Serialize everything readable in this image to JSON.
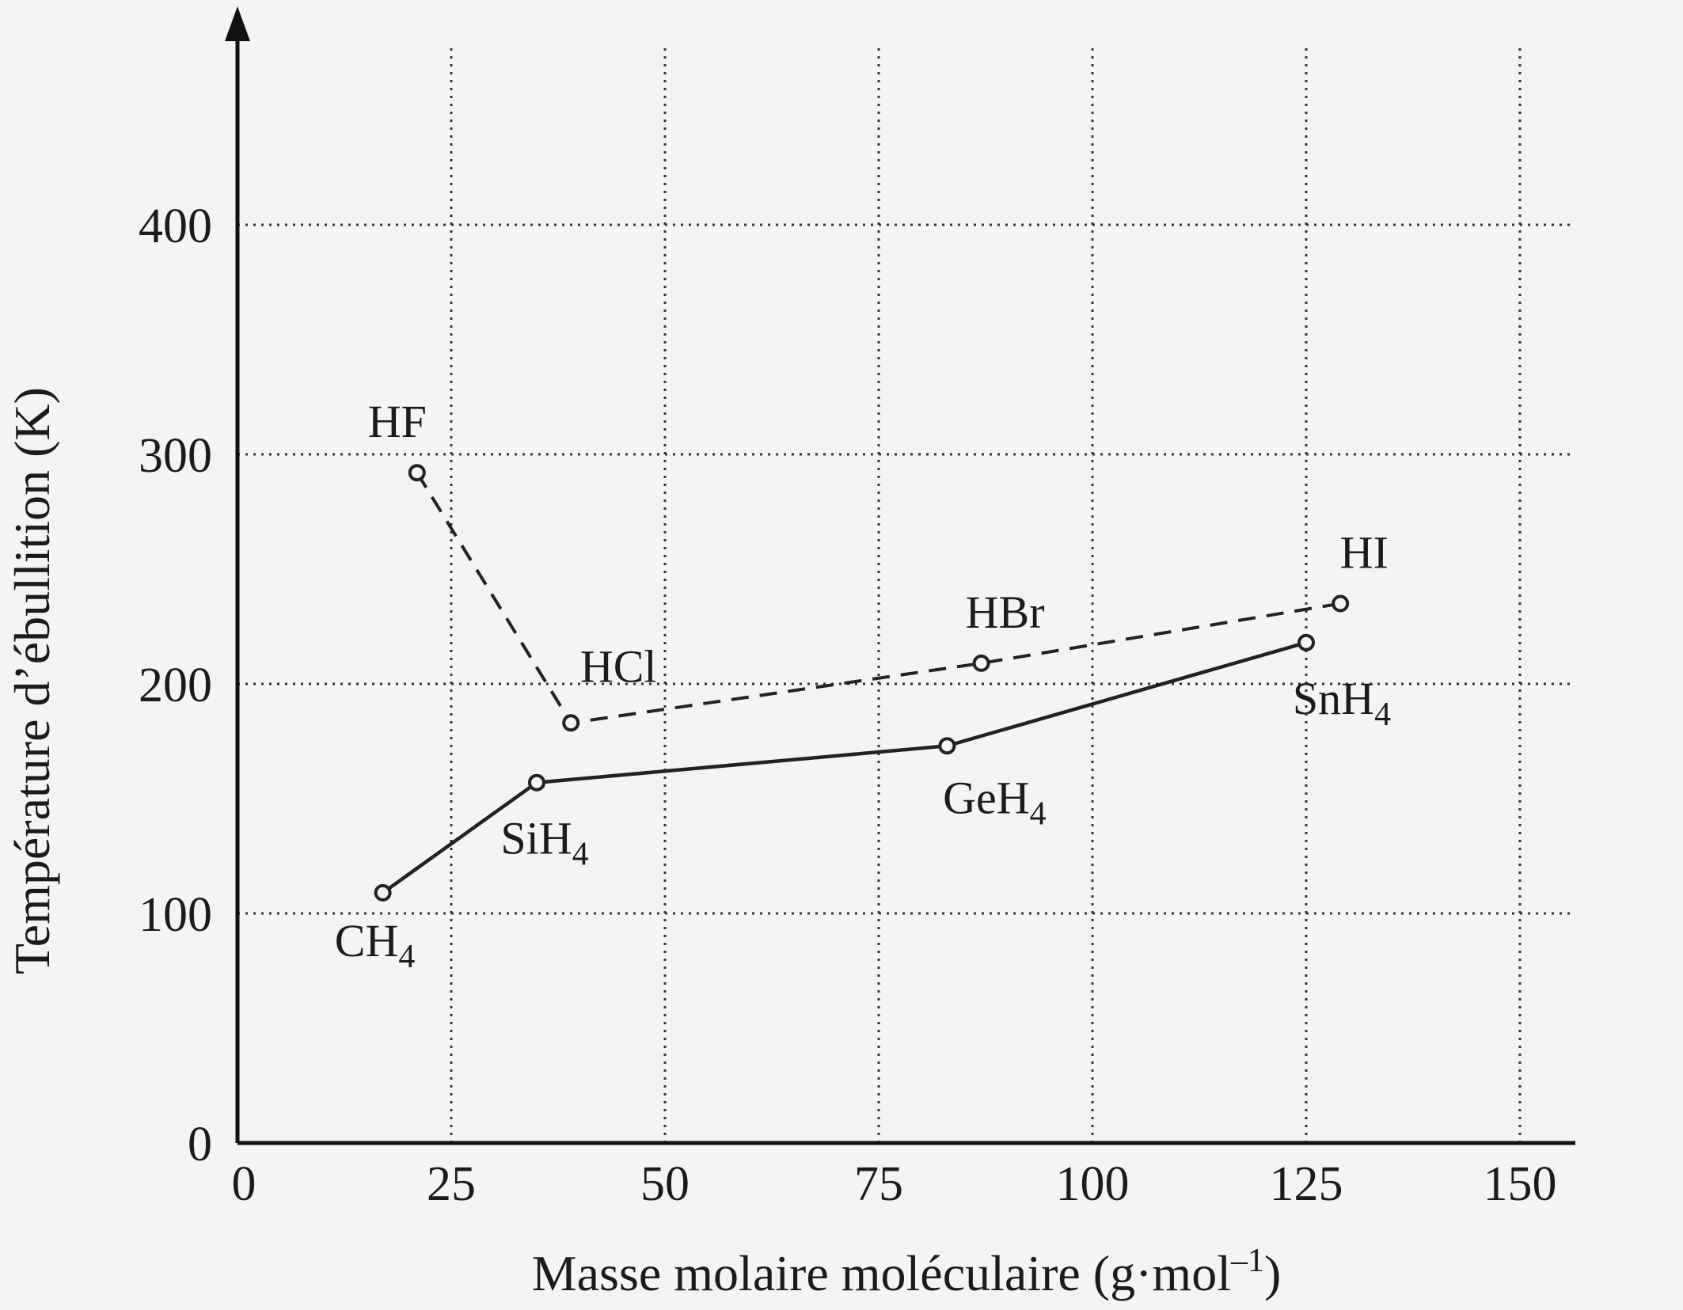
{
  "chart_data": {
    "type": "line",
    "xlabel": "Masse molaire moléculaire (g·mol",
    "xlabel_sup": "–1",
    "xlabel_end": ")",
    "ylabel": "Température d’ébullition (K)",
    "xlim": [
      0,
      160
    ],
    "ylim": [
      0,
      400
    ],
    "x_ticks": [
      0,
      25,
      50,
      75,
      100,
      125,
      150
    ],
    "y_ticks": [
      0,
      100,
      200,
      300,
      400
    ],
    "grid": true,
    "series": [
      {
        "style": "solid",
        "points": [
          {
            "label": "CH",
            "sub": "4",
            "x": 17,
            "y": 109
          },
          {
            "label": "SiH",
            "sub": "4",
            "x": 35,
            "y": 157
          },
          {
            "label": "GeH",
            "sub": "4",
            "x": 83,
            "y": 173
          },
          {
            "label": "SnH",
            "sub": "4",
            "x": 125,
            "y": 218
          }
        ]
      },
      {
        "style": "dashed",
        "points": [
          {
            "label": "HF",
            "sub": "",
            "x": 21,
            "y": 292
          },
          {
            "label": "HCl",
            "sub": "",
            "x": 39,
            "y": 183
          },
          {
            "label": "HBr",
            "sub": "",
            "x": 87,
            "y": 209
          },
          {
            "label": "HI",
            "sub": "",
            "x": 129,
            "y": 235
          }
        ]
      }
    ]
  }
}
